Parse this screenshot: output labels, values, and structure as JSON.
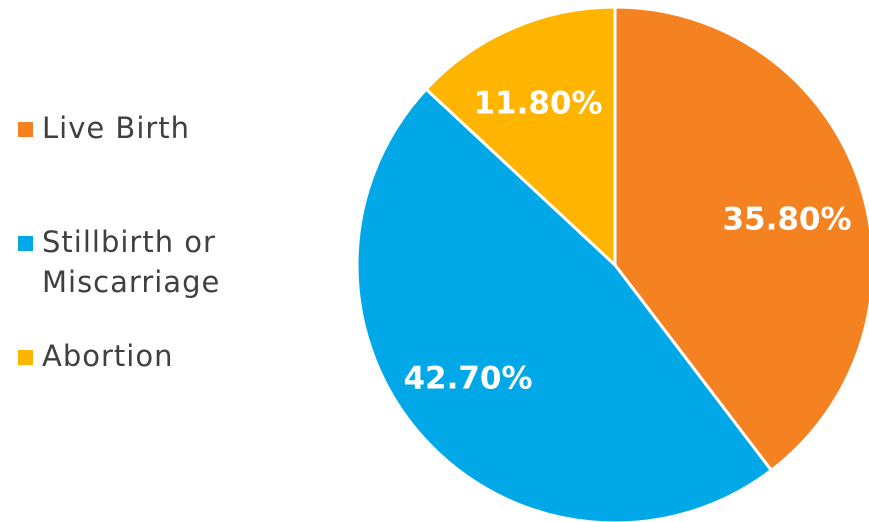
{
  "chart_data": {
    "type": "pie",
    "categories": [
      "Live Birth",
      "Stillbirth or Miscarriage",
      "Abortion"
    ],
    "values": [
      35.8,
      42.7,
      11.8
    ],
    "data_labels": [
      "35.80%",
      "42.70%",
      "11.80%"
    ],
    "colors": [
      "#F58220",
      "#00A8E8",
      "#FFB400"
    ],
    "legend_position": "left",
    "start_angle": "12 o'clock",
    "direction": "clockwise"
  }
}
